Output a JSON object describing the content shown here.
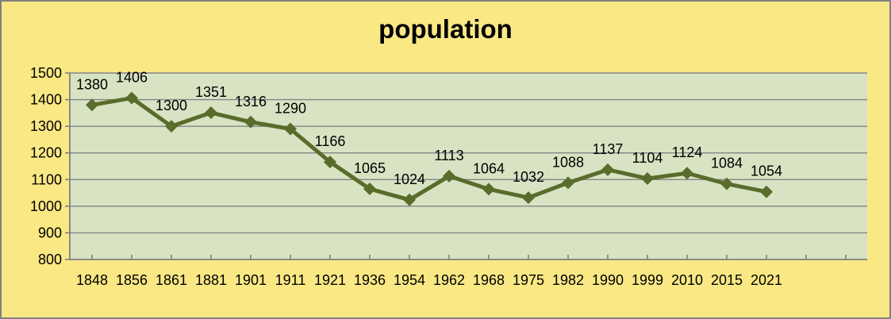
{
  "chart_data": {
    "type": "line",
    "title": "population",
    "xlabel": "",
    "ylabel": "",
    "categories": [
      "1848",
      "1856",
      "1861",
      "1881",
      "1901",
      "1911",
      "1921",
      "1936",
      "1954",
      "1962",
      "1968",
      "1975",
      "1982",
      "1990",
      "1999",
      "2010",
      "2015",
      "2021"
    ],
    "series": [
      {
        "name": "population",
        "values": [
          1380,
          1406,
          1300,
          1351,
          1316,
          1290,
          1166,
          1065,
          1024,
          1113,
          1064,
          1032,
          1088,
          1137,
          1104,
          1124,
          1084,
          1054
        ]
      }
    ],
    "ylim": [
      800,
      1500
    ],
    "y_ticks": [
      800,
      900,
      1000,
      1100,
      1200,
      1300,
      1400,
      1500
    ],
    "grid": true,
    "legend_position": "none",
    "data_labels_position": "above",
    "marker_shape": "diamond",
    "empty_trailing_slots": 2
  },
  "colors": {
    "window_background": "#FAE884",
    "window_border": "#808080",
    "plot_background": "#D8E3C3",
    "gridline": "#848484",
    "axis_line": "#7F7F7F",
    "series_line": "#5A6C2B",
    "label_text": "#000000"
  }
}
